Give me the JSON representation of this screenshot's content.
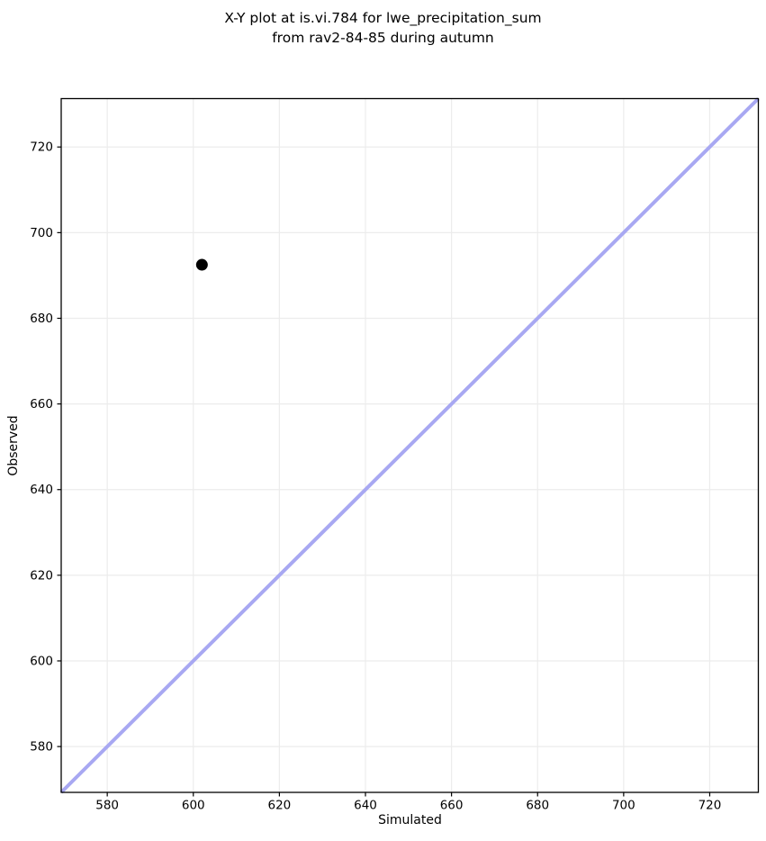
{
  "chart_data": {
    "type": "scatter",
    "title_lines": [
      "X-Y plot at is.vi.784 for lwe_precipitation_sum",
      "from rav2-84-85 during autumn"
    ],
    "xlabel": "Simulated",
    "ylabel": "Observed",
    "xlim": [
      569.3,
      731.3
    ],
    "ylim": [
      569.3,
      731.3
    ],
    "xticks": [
      580,
      600,
      620,
      640,
      660,
      680,
      700,
      720
    ],
    "yticks": [
      580,
      600,
      620,
      640,
      660,
      680,
      700,
      720
    ],
    "grid": true,
    "legend_position": "none",
    "points": [
      {
        "x": 602,
        "y": 692.5
      }
    ],
    "one_to_one_line": {
      "x": [
        569.3,
        731.3
      ],
      "y": [
        569.3,
        731.3
      ]
    },
    "colors": {
      "point": "#000000",
      "one_to_one_line": "#a8a8f2",
      "grid": "#ececec",
      "spine": "#000000",
      "background": "#ffffff"
    },
    "point_radius": 6.5,
    "line_width": 4
  }
}
